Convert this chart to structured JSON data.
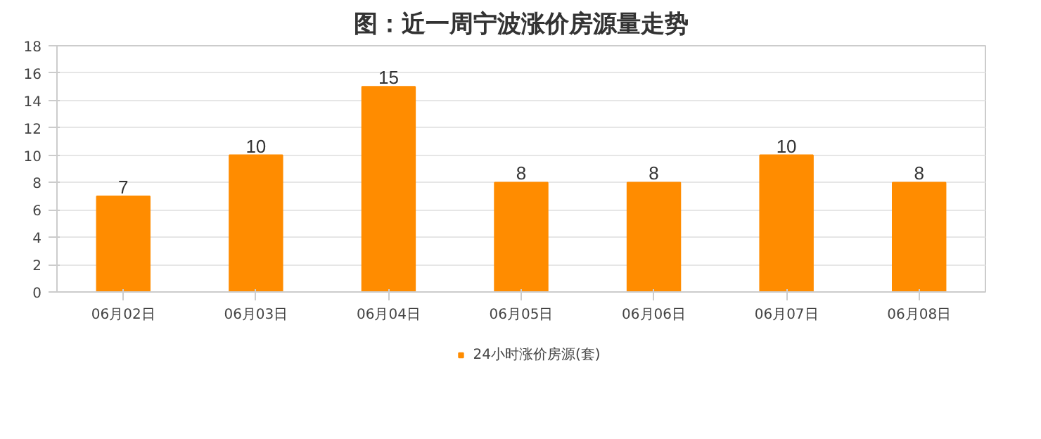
{
  "chart_data": {
    "type": "bar",
    "title": "图：近一周宁波涨价房源量走势",
    "categories": [
      "06月02日",
      "06月03日",
      "06月04日",
      "06月05日",
      "06月06日",
      "06月07日",
      "06月08日"
    ],
    "series": [
      {
        "name": "24小时涨价房源(套)",
        "color": "#ff8c00",
        "values": [
          7,
          10,
          15,
          8,
          8,
          10,
          8
        ]
      }
    ],
    "ylim": [
      0,
      18
    ],
    "yticks": [
      0,
      2,
      4,
      6,
      8,
      10,
      12,
      14,
      16,
      18
    ],
    "grid": "y",
    "legend": "bottom",
    "data_labels": true
  }
}
